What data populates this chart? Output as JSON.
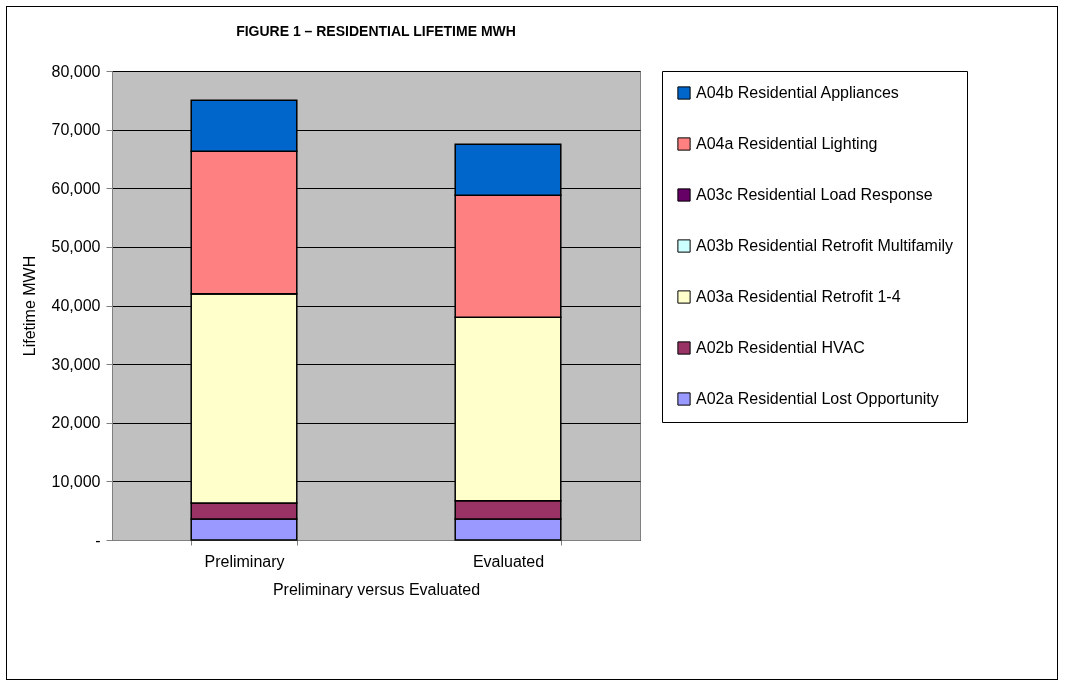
{
  "chart_data": {
    "type": "bar",
    "title": "FIGURE 1 – RESIDENTIAL LIFETIME MWH",
    "xlabel": "Preliminary versus Evaluated",
    "ylabel": "Lifetime MWH",
    "categories": [
      "Preliminary",
      "Evaluated"
    ],
    "stacked": true,
    "series": [
      {
        "name": "A02a Residential Lost Opportunity",
        "color": "#9999ff",
        "values": [
          3600,
          3600
        ]
      },
      {
        "name": "A02b Residential HVAC",
        "color": "#993366",
        "values": [
          2700,
          3100
        ]
      },
      {
        "name": "A03a Residential Retrofit 1-4",
        "color": "#ffffcc",
        "values": [
          35700,
          31300
        ]
      },
      {
        "name": "A03b Residential Retrofit Multifamily",
        "color": "#ccffff",
        "values": [
          0,
          0
        ]
      },
      {
        "name": "A03c Residential Load Response",
        "color": "#660066",
        "values": [
          0,
          0
        ]
      },
      {
        "name": "A04a Residential Lighting",
        "color": "#ff8080",
        "values": [
          24300,
          20800
        ]
      },
      {
        "name": "A04b Residential Appliances",
        "color": "#0066cc",
        "values": [
          8700,
          8700
        ]
      }
    ],
    "ylim": [
      0,
      80000
    ],
    "yticks": [
      {
        "value": 0,
        "label": "-"
      },
      {
        "value": 10000,
        "label": "10,000"
      },
      {
        "value": 20000,
        "label": "20,000"
      },
      {
        "value": 30000,
        "label": "30,000"
      },
      {
        "value": 40000,
        "label": "40,000"
      },
      {
        "value": 50000,
        "label": "50,000"
      },
      {
        "value": 60000,
        "label": "60,000"
      },
      {
        "value": 70000,
        "label": "70,000"
      },
      {
        "value": 80000,
        "label": "80,000"
      }
    ],
    "grid": "y",
    "legend": "right"
  }
}
